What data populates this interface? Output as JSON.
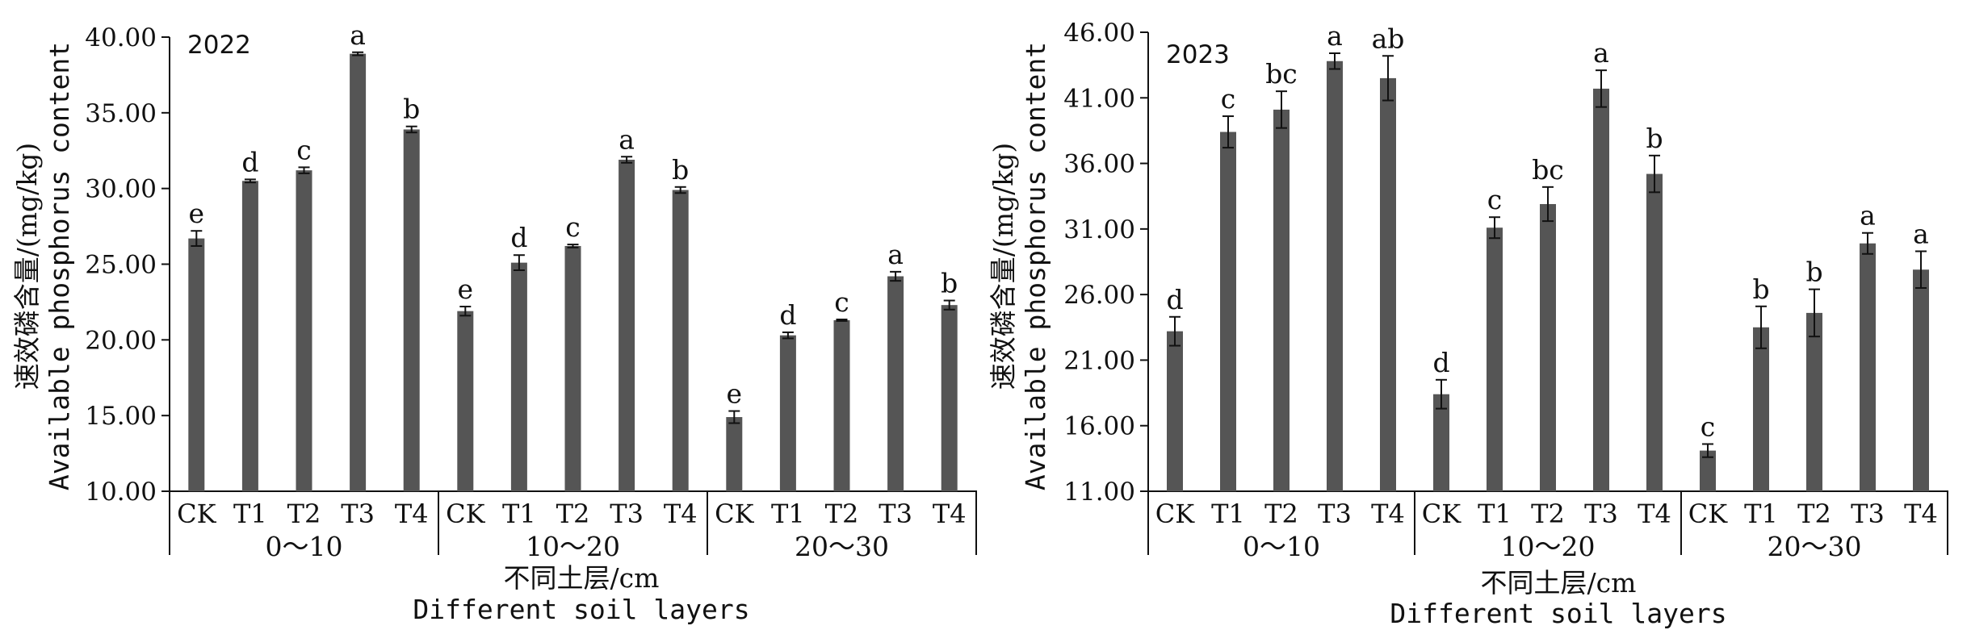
{
  "chart_data": [
    {
      "type": "bar",
      "annotation": "2022",
      "ylabel_cn": "速效磷含量/(mg/kg)",
      "ylabel_en": "Available phosphorus content",
      "xlabel_cn": "不同土层/cm",
      "xlabel_en": "Different soil layers",
      "ylim": [
        10,
        40
      ],
      "yticks": [
        "10.00",
        "15.00",
        "20.00",
        "25.00",
        "30.00",
        "35.00",
        "40.00"
      ],
      "ytick_values": [
        10,
        15,
        20,
        25,
        30,
        35,
        40
      ],
      "categories": [
        "CK",
        "T1",
        "T2",
        "T3",
        "T4"
      ],
      "bar_color": "#555555",
      "groups": [
        {
          "name": "0～10",
          "values": [
            26.7,
            30.5,
            31.2,
            38.9,
            33.9
          ],
          "errors": [
            0.5,
            0.1,
            0.2,
            0.1,
            0.2
          ],
          "letters": [
            "e",
            "d",
            "c",
            "a",
            "b"
          ]
        },
        {
          "name": "10～20",
          "values": [
            21.9,
            25.1,
            26.2,
            31.9,
            29.9
          ],
          "errors": [
            0.3,
            0.5,
            0.1,
            0.2,
            0.2
          ],
          "letters": [
            "e",
            "d",
            "c",
            "a",
            "b"
          ]
        },
        {
          "name": "20～30",
          "values": [
            14.9,
            20.3,
            21.3,
            24.2,
            22.3
          ],
          "errors": [
            0.4,
            0.2,
            0.05,
            0.3,
            0.3
          ],
          "letters": [
            "e",
            "d",
            "c",
            "a",
            "b"
          ]
        }
      ]
    },
    {
      "type": "bar",
      "annotation": "2023",
      "ylabel_cn": "速效磷含量/(mg/kg)",
      "ylabel_en": "Available phosphorus content",
      "xlabel_cn": "不同土层/cm",
      "xlabel_en": "Different soil layers",
      "ylim": [
        11,
        46
      ],
      "yticks": [
        "11.00",
        "16.00",
        "21.00",
        "26.00",
        "31.00",
        "36.00",
        "41.00",
        "46.00"
      ],
      "ytick_values": [
        11,
        16,
        21,
        26,
        31,
        36,
        41,
        46
      ],
      "categories": [
        "CK",
        "T1",
        "T2",
        "T3",
        "T4"
      ],
      "bar_color": "#555555",
      "groups": [
        {
          "name": "0～10",
          "values": [
            23.2,
            38.4,
            40.1,
            43.8,
            42.5
          ],
          "errors": [
            1.1,
            1.2,
            1.4,
            0.6,
            1.7
          ],
          "letters": [
            "d",
            "c",
            "bc",
            "a",
            "ab"
          ]
        },
        {
          "name": "10～20",
          "values": [
            18.4,
            31.1,
            32.9,
            41.7,
            35.2
          ],
          "errors": [
            1.1,
            0.8,
            1.3,
            1.4,
            1.4
          ],
          "letters": [
            "d",
            "c",
            "bc",
            "a",
            "b"
          ]
        },
        {
          "name": "20～30",
          "values": [
            14.1,
            23.5,
            24.6,
            29.9,
            27.9
          ],
          "errors": [
            0.5,
            1.6,
            1.8,
            0.8,
            1.4
          ],
          "letters": [
            "c",
            "b",
            "b",
            "a",
            "a"
          ]
        }
      ]
    }
  ]
}
